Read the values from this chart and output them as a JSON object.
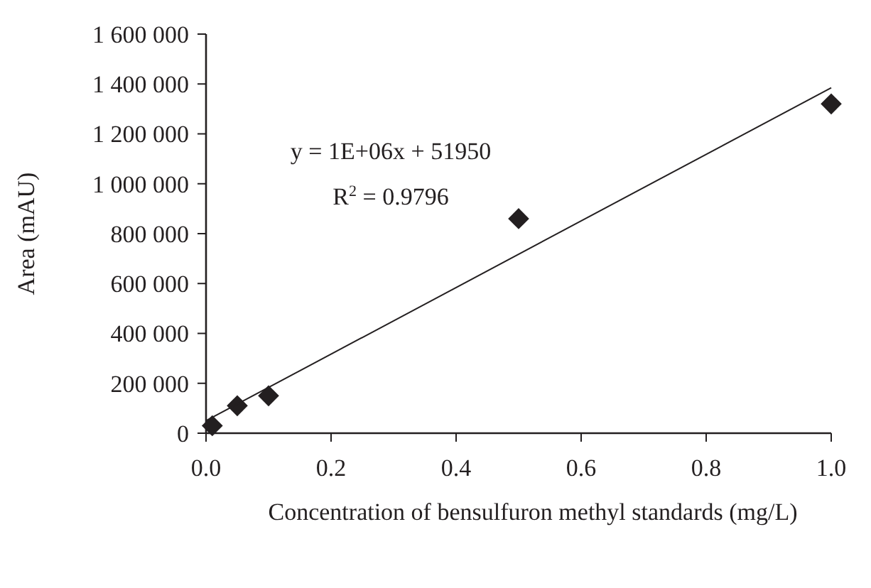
{
  "chart_data": {
    "type": "scatter",
    "xlabel": "Concentration of bensulfuron methyl standards (mg/L)",
    "ylabel": "Area (mAU)",
    "series": [
      {
        "color": "#231f20",
        "marker": "diamond",
        "x": [
          0.01,
          0.05,
          0.1,
          0.5,
          1.0
        ],
        "values": [
          30000,
          110000,
          150000,
          860000,
          1320000
        ]
      },
      {
        "type": "line",
        "color": "#231f20",
        "marker": "none",
        "x": [
          0,
          1.0
        ],
        "values": [
          50000,
          1385000
        ]
      }
    ],
    "annotations": [
      "y = 1E+06x + 51950",
      "R$^{2}$ = 0.9796"
    ],
    "xlim": [
      0,
      1.0
    ],
    "ylim": [
      0,
      1600000
    ],
    "xticks": [
      {
        "value": 0,
        "label": "0.0"
      },
      {
        "value": 0.2,
        "label": "0.2"
      },
      {
        "value": 0.4,
        "label": "0.4"
      },
      {
        "value": 0.6,
        "label": "0.6"
      },
      {
        "value": 0.8,
        "label": "0.8"
      },
      {
        "value": 1.0,
        "label": "1.0"
      }
    ],
    "yticks": [
      {
        "value": 0,
        "label": "0"
      },
      {
        "value": 200000,
        "label": "200 000"
      },
      {
        "value": 400000,
        "label": "400 000"
      },
      {
        "value": 600000,
        "label": "600 000"
      },
      {
        "value": 800000,
        "label": "800 000"
      },
      {
        "value": 1000000,
        "label": "1 000 000"
      },
      {
        "value": 1200000,
        "label": "1 200 000"
      },
      {
        "value": 1400000,
        "label": "1 400 000"
      },
      {
        "value": 1600000,
        "label": "1 600 000"
      }
    ],
    "grid": false
  }
}
